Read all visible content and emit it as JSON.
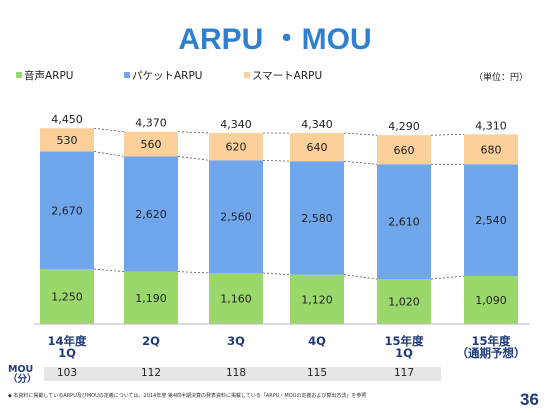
{
  "title": "ARPU ・MOU",
  "unit": "（単位：円）",
  "mou_label_line1": "MOU",
  "mou_label_line2": "（分）",
  "footnote": "◆ 本資料に掲載しているARPU及びMOUの定義については、2014年度 第4四半期決算の発表資料に掲載している「ARPU・MOUの定義および算出方法」を参照",
  "page_number": "36",
  "colors": {
    "voice": "#9bd86c",
    "packet": "#6fa6ec",
    "smart": "#fcd09a",
    "title": "#2f80d0",
    "category": "#1f3a7a"
  },
  "chart_data": {
    "type": "bar",
    "stacked": true,
    "categories": [
      "14年度\n1Q",
      "2Q",
      "3Q",
      "4Q",
      "15年度\n1Q",
      "15年度\n（通期予想）"
    ],
    "series": [
      {
        "name": "音声ARPU",
        "values": [
          1250,
          1190,
          1160,
          1120,
          1020,
          1090
        ]
      },
      {
        "name": "パケットARPU",
        "values": [
          2670,
          2620,
          2560,
          2580,
          2610,
          2540
        ]
      },
      {
        "name": "スマートARPU",
        "values": [
          530,
          560,
          620,
          640,
          660,
          680
        ]
      }
    ],
    "totals": [
      4450,
      4370,
      4340,
      4340,
      4290,
      4310
    ],
    "value_labels": {
      "voice": [
        "1,250",
        "1,190",
        "1,160",
        "1,120",
        "1,020",
        "1,090"
      ],
      "packet": [
        "2,670",
        "2,620",
        "2,560",
        "2,580",
        "2,610",
        "2,540"
      ],
      "smart": [
        "530",
        "560",
        "620",
        "640",
        "660",
        "680"
      ],
      "totals": [
        "4,450",
        "4,370",
        "4,340",
        "4,340",
        "4,290",
        "4,310"
      ]
    },
    "mou": [
      "103",
      "112",
      "118",
      "115",
      "117",
      ""
    ],
    "ylim": [
      0,
      4500
    ],
    "legend_position": "top-left"
  }
}
